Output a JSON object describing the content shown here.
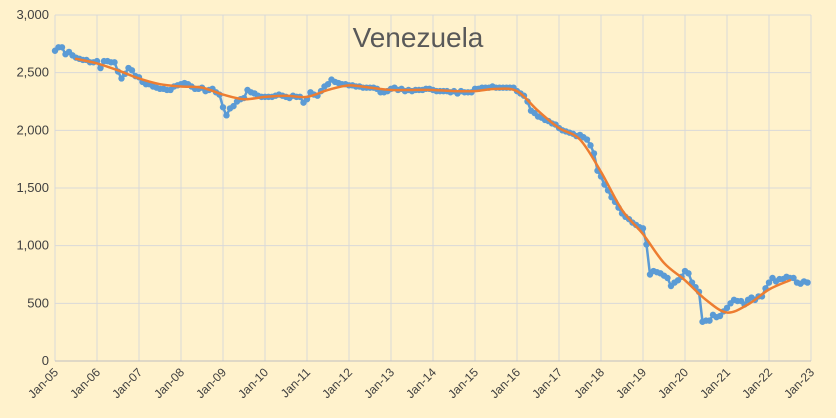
{
  "chart_data": {
    "type": "line",
    "title": "Venezuela",
    "xlabel": "",
    "ylabel": "",
    "ylim": [
      0,
      3000
    ],
    "y_ticks": [
      "0",
      "500",
      "1,000",
      "1,500",
      "2,000",
      "2,500",
      "3,000"
    ],
    "x_ticks": [
      "Jan-05",
      "Jan-06",
      "Jan-07",
      "Jan-08",
      "Jan-09",
      "Jan-10",
      "Jan-11",
      "Jan-12",
      "Jan-13",
      "Jan-14",
      "Jan-15",
      "Jan-16",
      "Jan-17",
      "Jan-18",
      "Jan-19",
      "Jan-20",
      "Jan-21",
      "Jan-22",
      "Jan-23"
    ],
    "xlim": [
      "2005-01",
      "2023-01"
    ],
    "grid": true,
    "legend": "none",
    "series": [
      {
        "name": "",
        "style": "line-with-markers",
        "color": "#5b9bd5",
        "points": [
          [
            "2005-01",
            2690
          ],
          [
            "2005-02",
            2720
          ],
          [
            "2005-03",
            2720
          ],
          [
            "2005-04",
            2660
          ],
          [
            "2005-05",
            2680
          ],
          [
            "2005-06",
            2650
          ],
          [
            "2005-07",
            2630
          ],
          [
            "2005-08",
            2620
          ],
          [
            "2005-09",
            2610
          ],
          [
            "2005-10",
            2610
          ],
          [
            "2005-11",
            2590
          ],
          [
            "2005-12",
            2590
          ],
          [
            "2006-01",
            2600
          ],
          [
            "2006-02",
            2540
          ],
          [
            "2006-03",
            2600
          ],
          [
            "2006-04",
            2600
          ],
          [
            "2006-05",
            2590
          ],
          [
            "2006-06",
            2590
          ],
          [
            "2006-07",
            2510
          ],
          [
            "2006-08",
            2450
          ],
          [
            "2006-09",
            2490
          ],
          [
            "2006-10",
            2540
          ],
          [
            "2006-11",
            2520
          ],
          [
            "2006-12",
            2470
          ],
          [
            "2007-01",
            2460
          ],
          [
            "2007-02",
            2420
          ],
          [
            "2007-03",
            2400
          ],
          [
            "2007-04",
            2400
          ],
          [
            "2007-05",
            2380
          ],
          [
            "2007-06",
            2370
          ],
          [
            "2007-07",
            2360
          ],
          [
            "2007-08",
            2360
          ],
          [
            "2007-09",
            2350
          ],
          [
            "2007-10",
            2350
          ],
          [
            "2007-11",
            2380
          ],
          [
            "2007-12",
            2390
          ],
          [
            "2008-01",
            2400
          ],
          [
            "2008-02",
            2410
          ],
          [
            "2008-03",
            2400
          ],
          [
            "2008-04",
            2380
          ],
          [
            "2008-05",
            2360
          ],
          [
            "2008-06",
            2360
          ],
          [
            "2008-07",
            2370
          ],
          [
            "2008-08",
            2340
          ],
          [
            "2008-09",
            2350
          ],
          [
            "2008-10",
            2360
          ],
          [
            "2008-11",
            2330
          ],
          [
            "2008-12",
            2310
          ],
          [
            "2009-01",
            2200
          ],
          [
            "2009-02",
            2130
          ],
          [
            "2009-03",
            2190
          ],
          [
            "2009-04",
            2210
          ],
          [
            "2009-05",
            2250
          ],
          [
            "2009-06",
            2270
          ],
          [
            "2009-07",
            2280
          ],
          [
            "2009-08",
            2350
          ],
          [
            "2009-09",
            2330
          ],
          [
            "2009-10",
            2320
          ],
          [
            "2009-11",
            2300
          ],
          [
            "2009-12",
            2290
          ],
          [
            "2010-01",
            2290
          ],
          [
            "2010-02",
            2290
          ],
          [
            "2010-03",
            2290
          ],
          [
            "2010-04",
            2300
          ],
          [
            "2010-05",
            2310
          ],
          [
            "2010-06",
            2300
          ],
          [
            "2010-07",
            2290
          ],
          [
            "2010-08",
            2280
          ],
          [
            "2010-09",
            2300
          ],
          [
            "2010-10",
            2290
          ],
          [
            "2010-11",
            2290
          ],
          [
            "2010-12",
            2240
          ],
          [
            "2011-01",
            2270
          ],
          [
            "2011-02",
            2330
          ],
          [
            "2011-03",
            2310
          ],
          [
            "2011-04",
            2300
          ],
          [
            "2011-05",
            2340
          ],
          [
            "2011-06",
            2380
          ],
          [
            "2011-07",
            2400
          ],
          [
            "2011-08",
            2440
          ],
          [
            "2011-09",
            2420
          ],
          [
            "2011-10",
            2410
          ],
          [
            "2011-11",
            2400
          ],
          [
            "2011-12",
            2400
          ],
          [
            "2012-01",
            2390
          ],
          [
            "2012-02",
            2390
          ],
          [
            "2012-03",
            2380
          ],
          [
            "2012-04",
            2380
          ],
          [
            "2012-05",
            2370
          ],
          [
            "2012-06",
            2370
          ],
          [
            "2012-07",
            2370
          ],
          [
            "2012-08",
            2370
          ],
          [
            "2012-09",
            2360
          ],
          [
            "2012-10",
            2330
          ],
          [
            "2012-11",
            2330
          ],
          [
            "2012-12",
            2340
          ],
          [
            "2013-01",
            2360
          ],
          [
            "2013-02",
            2370
          ],
          [
            "2013-03",
            2350
          ],
          [
            "2013-04",
            2360
          ],
          [
            "2013-05",
            2340
          ],
          [
            "2013-06",
            2350
          ],
          [
            "2013-07",
            2340
          ],
          [
            "2013-08",
            2350
          ],
          [
            "2013-09",
            2350
          ],
          [
            "2013-10",
            2350
          ],
          [
            "2013-11",
            2360
          ],
          [
            "2013-12",
            2360
          ],
          [
            "2014-01",
            2350
          ],
          [
            "2014-02",
            2340
          ],
          [
            "2014-03",
            2340
          ],
          [
            "2014-04",
            2340
          ],
          [
            "2014-05",
            2340
          ],
          [
            "2014-06",
            2330
          ],
          [
            "2014-07",
            2340
          ],
          [
            "2014-08",
            2320
          ],
          [
            "2014-09",
            2340
          ],
          [
            "2014-10",
            2330
          ],
          [
            "2014-11",
            2330
          ],
          [
            "2014-12",
            2330
          ],
          [
            "2015-01",
            2360
          ],
          [
            "2015-02",
            2360
          ],
          [
            "2015-03",
            2370
          ],
          [
            "2015-04",
            2370
          ],
          [
            "2015-05",
            2370
          ],
          [
            "2015-06",
            2380
          ],
          [
            "2015-07",
            2370
          ],
          [
            "2015-08",
            2370
          ],
          [
            "2015-09",
            2370
          ],
          [
            "2015-10",
            2370
          ],
          [
            "2015-11",
            2370
          ],
          [
            "2015-12",
            2370
          ],
          [
            "2016-01",
            2340
          ],
          [
            "2016-02",
            2320
          ],
          [
            "2016-03",
            2300
          ],
          [
            "2016-04",
            2250
          ],
          [
            "2016-05",
            2170
          ],
          [
            "2016-06",
            2150
          ],
          [
            "2016-07",
            2120
          ],
          [
            "2016-08",
            2110
          ],
          [
            "2016-09",
            2090
          ],
          [
            "2016-10",
            2080
          ],
          [
            "2016-11",
            2060
          ],
          [
            "2016-12",
            2050
          ],
          [
            "2017-01",
            2020
          ],
          [
            "2017-02",
            2000
          ],
          [
            "2017-03",
            1990
          ],
          [
            "2017-04",
            1980
          ],
          [
            "2017-05",
            1970
          ],
          [
            "2017-06",
            1950
          ],
          [
            "2017-07",
            1960
          ],
          [
            "2017-08",
            1940
          ],
          [
            "2017-09",
            1920
          ],
          [
            "2017-10",
            1870
          ],
          [
            "2017-11",
            1800
          ],
          [
            "2017-12",
            1650
          ],
          [
            "2018-01",
            1600
          ],
          [
            "2018-02",
            1530
          ],
          [
            "2018-03",
            1480
          ],
          [
            "2018-04",
            1420
          ],
          [
            "2018-05",
            1380
          ],
          [
            "2018-06",
            1330
          ],
          [
            "2018-07",
            1280
          ],
          [
            "2018-08",
            1250
          ],
          [
            "2018-09",
            1230
          ],
          [
            "2018-10",
            1200
          ],
          [
            "2018-11",
            1180
          ],
          [
            "2018-12",
            1160
          ],
          [
            "2019-01",
            1150
          ],
          [
            "2019-02",
            1010
          ],
          [
            "2019-03",
            750
          ],
          [
            "2019-04",
            780
          ],
          [
            "2019-05",
            770
          ],
          [
            "2019-06",
            760
          ],
          [
            "2019-07",
            740
          ],
          [
            "2019-08",
            720
          ],
          [
            "2019-09",
            650
          ],
          [
            "2019-10",
            680
          ],
          [
            "2019-11",
            700
          ],
          [
            "2019-12",
            730
          ],
          [
            "2020-01",
            780
          ],
          [
            "2020-02",
            760
          ],
          [
            "2020-03",
            680
          ],
          [
            "2020-04",
            640
          ],
          [
            "2020-05",
            600
          ],
          [
            "2020-06",
            340
          ],
          [
            "2020-07",
            350
          ],
          [
            "2020-08",
            350
          ],
          [
            "2020-09",
            400
          ],
          [
            "2020-10",
            380
          ],
          [
            "2020-11",
            390
          ],
          [
            "2020-12",
            430
          ],
          [
            "2021-01",
            460
          ],
          [
            "2021-02",
            500
          ],
          [
            "2021-03",
            530
          ],
          [
            "2021-04",
            520
          ],
          [
            "2021-05",
            520
          ],
          [
            "2021-06",
            490
          ],
          [
            "2021-07",
            530
          ],
          [
            "2021-08",
            550
          ],
          [
            "2021-09",
            530
          ],
          [
            "2021-10",
            560
          ],
          [
            "2021-11",
            560
          ],
          [
            "2021-12",
            630
          ],
          [
            "2022-01",
            680
          ],
          [
            "2022-02",
            720
          ],
          [
            "2022-03",
            690
          ],
          [
            "2022-04",
            710
          ],
          [
            "2022-05",
            710
          ],
          [
            "2022-06",
            730
          ],
          [
            "2022-07",
            720
          ],
          [
            "2022-08",
            720
          ],
          [
            "2022-09",
            680
          ],
          [
            "2022-10",
            670
          ],
          [
            "2022-11",
            690
          ],
          [
            "2022-12",
            680
          ]
        ]
      },
      {
        "name": "",
        "style": "smooth-line",
        "color": "#ed7d31",
        "points": [
          [
            "2005-07",
            2620
          ],
          [
            "2006-01",
            2580
          ],
          [
            "2006-07",
            2520
          ],
          [
            "2007-01",
            2450
          ],
          [
            "2007-07",
            2400
          ],
          [
            "2008-01",
            2380
          ],
          [
            "2008-07",
            2370
          ],
          [
            "2009-01",
            2310
          ],
          [
            "2009-07",
            2270
          ],
          [
            "2010-01",
            2290
          ],
          [
            "2010-07",
            2300
          ],
          [
            "2011-01",
            2290
          ],
          [
            "2011-07",
            2350
          ],
          [
            "2012-01",
            2390
          ],
          [
            "2012-07",
            2370
          ],
          [
            "2013-01",
            2350
          ],
          [
            "2013-07",
            2350
          ],
          [
            "2014-01",
            2350
          ],
          [
            "2014-07",
            2340
          ],
          [
            "2015-01",
            2340
          ],
          [
            "2015-07",
            2360
          ],
          [
            "2016-01",
            2340
          ],
          [
            "2016-07",
            2170
          ],
          [
            "2017-01",
            2020
          ],
          [
            "2017-07",
            1920
          ],
          [
            "2018-01",
            1640
          ],
          [
            "2018-07",
            1310
          ],
          [
            "2019-01",
            1100
          ],
          [
            "2019-07",
            850
          ],
          [
            "2020-01",
            700
          ],
          [
            "2020-07",
            530
          ],
          [
            "2021-01",
            420
          ],
          [
            "2021-07",
            490
          ],
          [
            "2022-01",
            620
          ],
          [
            "2022-07",
            700
          ]
        ]
      }
    ]
  }
}
